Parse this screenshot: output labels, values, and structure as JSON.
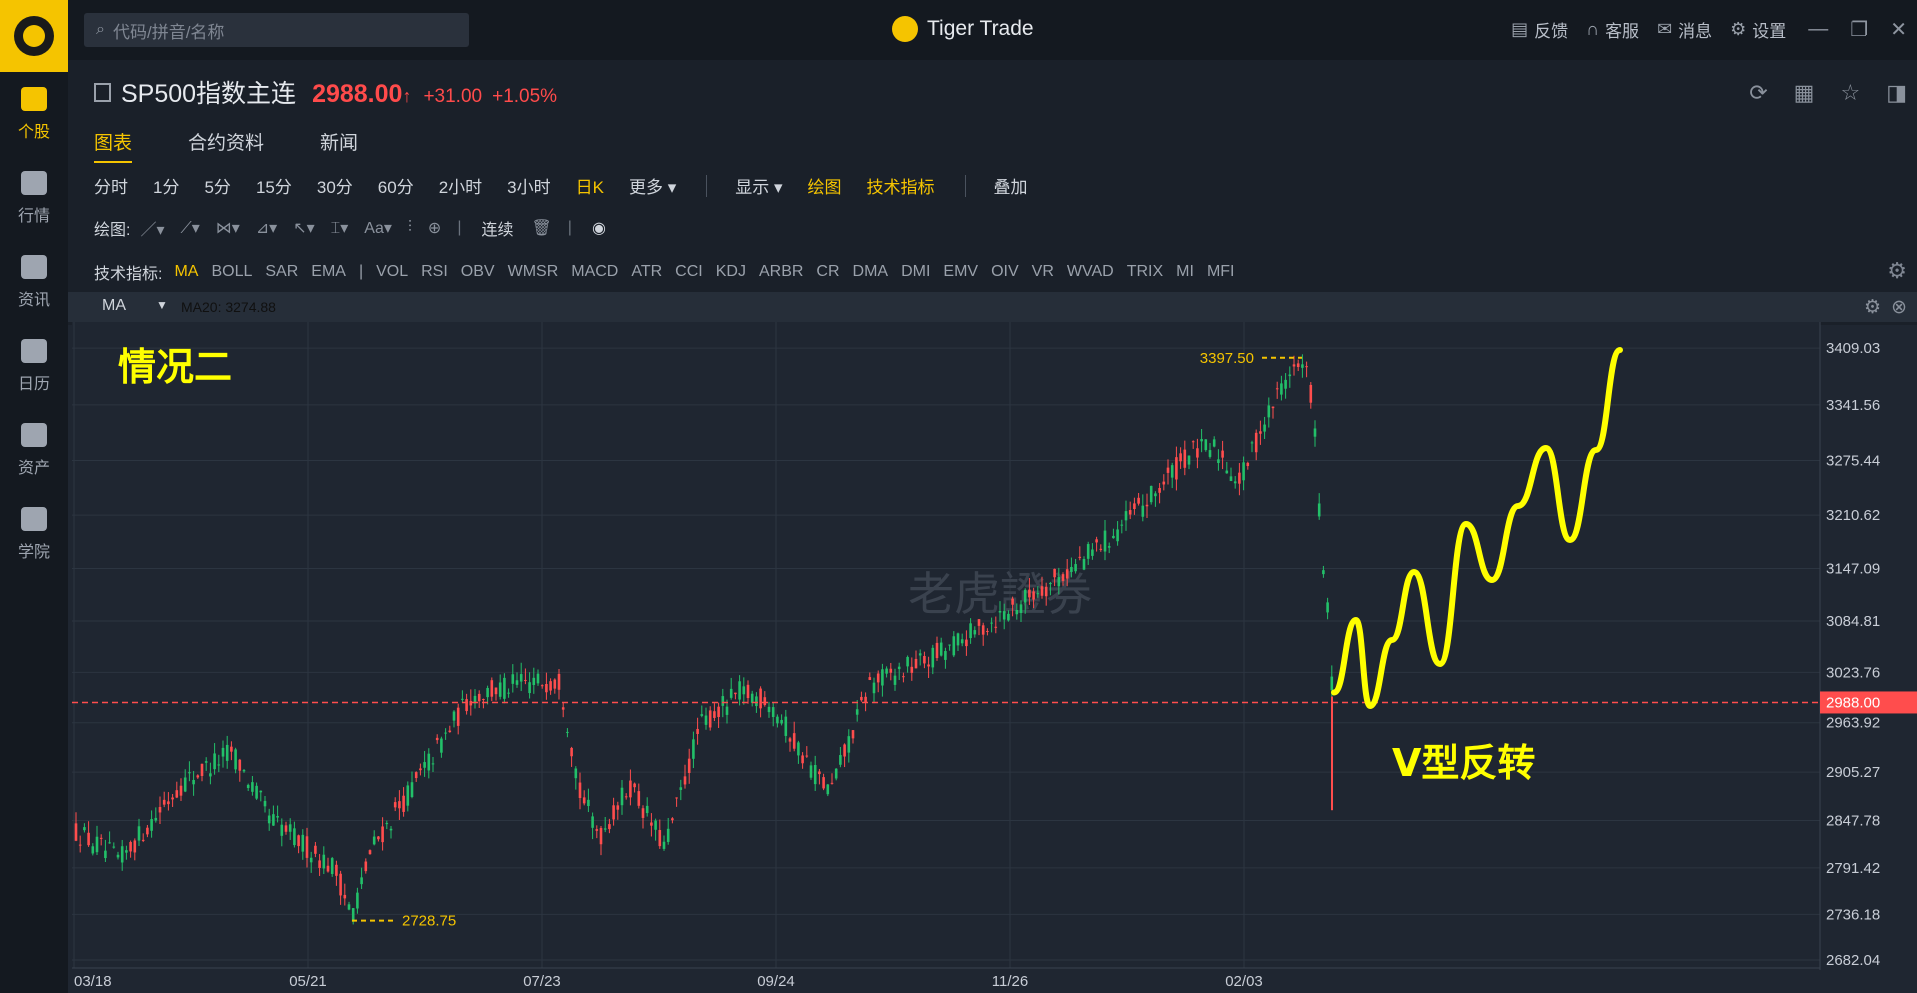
{
  "app": {
    "brand": "Tiger Trade",
    "search_placeholder": "代码/拼音/名称",
    "top_actions": [
      {
        "label": "反馈",
        "icon": "feedback-icon"
      },
      {
        "label": "客服",
        "icon": "headset-icon"
      },
      {
        "label": "消息",
        "icon": "mail-icon"
      },
      {
        "label": "设置",
        "icon": "gear-icon"
      }
    ],
    "window_controls": [
      "minimize-icon",
      "restore-icon",
      "close-icon"
    ]
  },
  "sidebar": {
    "items": [
      {
        "label": "个股",
        "icon": "stock-icon",
        "active": true
      },
      {
        "label": "行情",
        "icon": "market-icon",
        "active": false
      },
      {
        "label": "资讯",
        "icon": "news-icon",
        "active": false
      },
      {
        "label": "日历",
        "icon": "calendar-icon",
        "active": false
      },
      {
        "label": "资产",
        "icon": "wallet-icon",
        "active": false
      },
      {
        "label": "学院",
        "icon": "play-icon",
        "active": false
      }
    ]
  },
  "quote": {
    "name": "SP500指数主连",
    "price": "2988.00",
    "arrow": "↑",
    "change": "+31.00",
    "change_pct": "+1.05%"
  },
  "tabs": [
    {
      "label": "图表",
      "active": true
    },
    {
      "label": "合约资料",
      "active": false
    },
    {
      "label": "新闻",
      "active": false
    }
  ],
  "periods": {
    "items": [
      "分时",
      "1分",
      "5分",
      "15分",
      "30分",
      "60分",
      "2小时",
      "3小时"
    ],
    "active": "日K",
    "more": "更多 ▾",
    "display": "显示 ▾",
    "draw": "绘图",
    "indicators": "技术指标",
    "overlay": "叠加"
  },
  "drawbar": {
    "label": "绘图:",
    "continuous": "连续"
  },
  "indicators": {
    "label": "技术指标:",
    "items": [
      "MA",
      "BOLL",
      "SAR",
      "EMA",
      "|",
      "VOL",
      "RSI",
      "OBV",
      "WMSR",
      "MACD",
      "ATR",
      "CCI",
      "KDJ",
      "ARBR",
      "CR",
      "DMA",
      "DMI",
      "EMV",
      "OIV",
      "VR",
      "WVAD",
      "TRIX",
      "MI",
      "MFI"
    ],
    "active": "MA"
  },
  "ma_bar": {
    "label": "MA",
    "value": "MA20: 3274.88"
  },
  "chart_data": {
    "type": "candlestick",
    "ylim": [
      2682.04,
      3440
    ],
    "y_ticks": [
      "3409.03",
      "3341.56",
      "3275.44",
      "3210.62",
      "3147.09",
      "3084.81",
      "3023.76",
      "2963.92",
      "2905.27",
      "2847.78",
      "2791.42",
      "2736.18",
      "2682.04"
    ],
    "x_ticks": [
      "03/18",
      "05/21",
      "07/23",
      "09/24",
      "11/26",
      "02/03"
    ],
    "current_price": "2988.00",
    "high_label": "3397.50",
    "low_label": "2728.75",
    "annotations": {
      "case_label": "情况二",
      "pattern_label": "V型反转"
    },
    "watermark": "老虎證券",
    "colors": {
      "up": "#ff4d4d",
      "down": "#22c069",
      "annotation": "#ffff00",
      "current": "#ff4d4d"
    }
  }
}
